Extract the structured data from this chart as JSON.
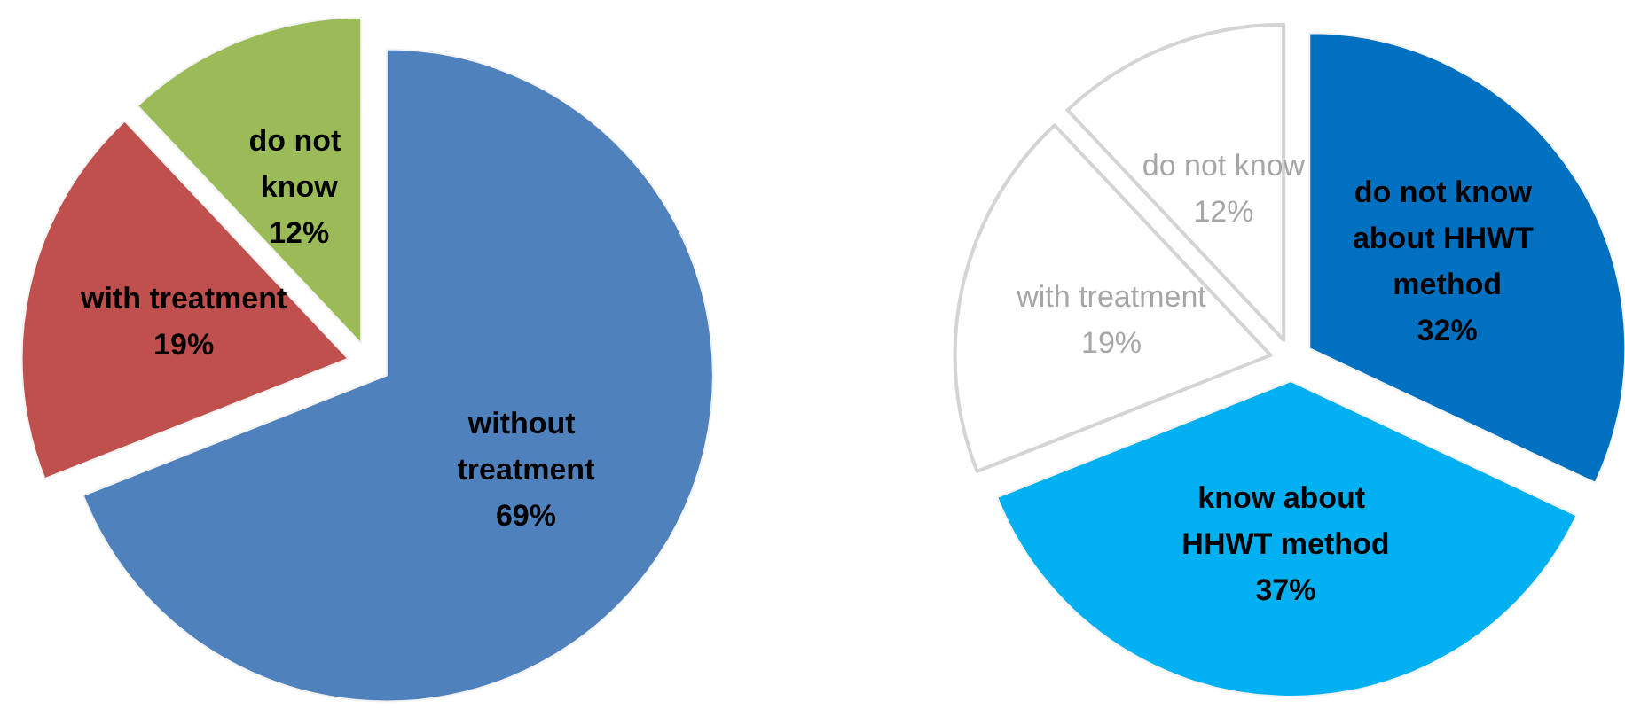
{
  "chart_data": [
    {
      "type": "pie",
      "categories": [
        "without treatment",
        "with treatment",
        "do not know"
      ],
      "values": [
        69,
        19,
        12
      ],
      "colors": [
        "#4f81bd",
        "#c0504d",
        "#9bbb59"
      ],
      "value_labels": [
        "69%",
        "19%",
        "12%"
      ]
    },
    {
      "type": "pie",
      "categories": [
        "do not know about HHWT method",
        "know about HHWT method",
        "with treatment",
        "do not know"
      ],
      "values": [
        32,
        37,
        19,
        12
      ],
      "colors": [
        "#0070c0",
        "#00b0f0",
        "#ffffff",
        "#ffffff"
      ],
      "value_labels": [
        "32%",
        "37%",
        "19%",
        "12%"
      ]
    }
  ]
}
